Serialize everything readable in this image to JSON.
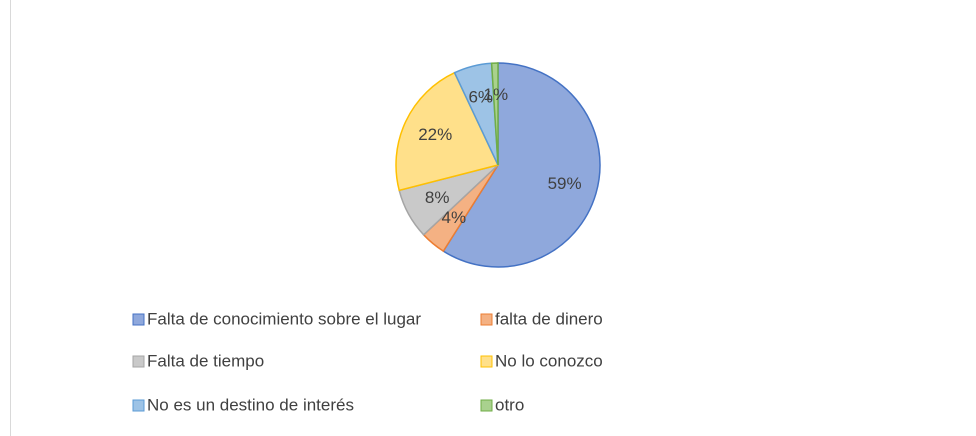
{
  "chart_data": {
    "type": "pie",
    "categories": [
      "Falta de conocimiento sobre el lugar",
      "falta de dinero",
      "Falta de tiempo",
      "No lo conozco",
      "No es un destino de interés",
      "otro"
    ],
    "values": [
      59,
      4,
      8,
      22,
      6,
      1
    ],
    "value_labels": [
      "59%",
      "4%",
      "8%",
      "22%",
      "6%",
      "1%"
    ],
    "colors": [
      "#8fa8dc",
      "#f4b183",
      "#c9c9c9",
      "#ffe08a",
      "#9dc3e6",
      "#a9d18e"
    ],
    "edge_colors": [
      "#4472c4",
      "#ed7d31",
      "#a5a5a5",
      "#ffc000",
      "#5b9bd5",
      "#70ad47"
    ],
    "legend": "bottom"
  }
}
